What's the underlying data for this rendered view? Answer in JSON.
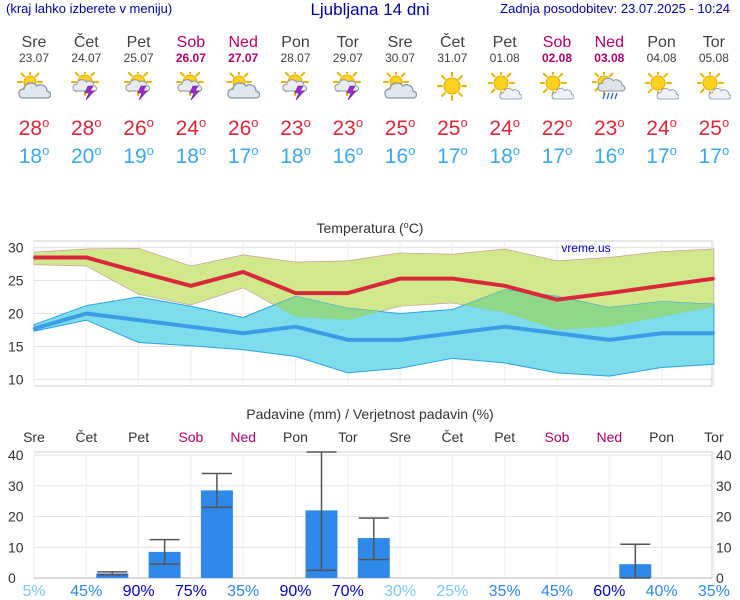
{
  "header": {
    "menu_hint": "(kraj lahko izberete v meniju)",
    "title": "Ljubljana 14 dni",
    "last_update": "Zadnja posodobitev: 23.07.2025 - 10:24"
  },
  "days": [
    {
      "day": "Sre",
      "date": "23.07",
      "weekend": false,
      "icon": "partly-cloudy-icon",
      "max": "28",
      "min": "18"
    },
    {
      "day": "Čet",
      "date": "24.07",
      "weekend": false,
      "icon": "sun-thunder-icon",
      "max": "28",
      "min": "20"
    },
    {
      "day": "Pet",
      "date": "25.07",
      "weekend": false,
      "icon": "sun-thunder-icon",
      "max": "26",
      "min": "19"
    },
    {
      "day": "Sob",
      "date": "26.07",
      "weekend": true,
      "icon": "sun-thunder-icon",
      "max": "24",
      "min": "18"
    },
    {
      "day": "Ned",
      "date": "27.07",
      "weekend": true,
      "icon": "partly-cloudy-icon",
      "max": "26",
      "min": "17"
    },
    {
      "day": "Pon",
      "date": "28.07",
      "weekend": false,
      "icon": "sun-thunder-icon",
      "max": "23",
      "min": "18"
    },
    {
      "day": "Tor",
      "date": "29.07",
      "weekend": false,
      "icon": "sun-thunder-icon",
      "max": "23",
      "min": "16"
    },
    {
      "day": "Sre",
      "date": "30.07",
      "weekend": false,
      "icon": "partly-cloudy-icon",
      "max": "25",
      "min": "16"
    },
    {
      "day": "Čet",
      "date": "31.07",
      "weekend": false,
      "icon": "sun-icon",
      "max": "25",
      "min": "17"
    },
    {
      "day": "Pet",
      "date": "01.08",
      "weekend": false,
      "icon": "sun-small-cloud-icon",
      "max": "24",
      "min": "18"
    },
    {
      "day": "Sob",
      "date": "02.08",
      "weekend": true,
      "icon": "sun-small-cloud-icon",
      "max": "22",
      "min": "17"
    },
    {
      "day": "Ned",
      "date": "03.08",
      "weekend": true,
      "icon": "sun-rain-icon",
      "max": "23",
      "min": "16"
    },
    {
      "day": "Pon",
      "date": "04.08",
      "weekend": false,
      "icon": "sun-small-cloud-icon",
      "max": "24",
      "min": "17"
    },
    {
      "day": "Tor",
      "date": "05.08",
      "weekend": false,
      "icon": "sun-small-cloud-icon",
      "max": "25",
      "min": "17"
    }
  ],
  "colors": {
    "max_line": "#d8283a",
    "min_line": "#3a9de6",
    "max_band": "#d2e88c",
    "min_band": "#7fdcec",
    "overlap_band": "#8fd88a",
    "bar": "#2f89e8",
    "weekend": "#b0006a",
    "prob_high": "#0000c0",
    "prob_mid": "#2f89e8",
    "prob_low": "#7cc8f4"
  },
  "chart_data": [
    {
      "type": "line",
      "title": "Temperatura (°C)",
      "watermark": "vreme.us",
      "categories": [
        "Sre",
        "Čet",
        "Pet",
        "Sob",
        "Ned",
        "Pon",
        "Tor",
        "Sre",
        "Čet",
        "Pet",
        "Sob",
        "Ned",
        "Pon",
        "Tor"
      ],
      "ylim": [
        9,
        31
      ],
      "yticks": [
        10,
        15,
        20,
        25,
        30
      ],
      "grid": true,
      "series": [
        {
          "name": "max",
          "values": [
            28.5,
            28.5,
            26.3,
            24.2,
            26.3,
            23.1,
            23.1,
            25.3,
            25.3,
            24.2,
            22.1,
            23.1,
            24.2,
            25.3
          ]
        },
        {
          "name": "min",
          "values": [
            17.7,
            20.0,
            19.0,
            18.0,
            17.0,
            18.0,
            16.0,
            16.0,
            17.0,
            18.0,
            17.0,
            16.0,
            17.0,
            17.0
          ]
        }
      ],
      "bands": [
        {
          "name": "max-range",
          "upper": [
            29.3,
            29.8,
            29.9,
            27.2,
            28.9,
            27.8,
            28.0,
            29.2,
            29.0,
            29.8,
            28.0,
            28.5,
            29.4,
            29.8
          ],
          "lower": [
            27.4,
            27.2,
            22.9,
            21.3,
            23.9,
            19.5,
            19.0,
            21.1,
            21.6,
            20.1,
            17.5,
            18.0,
            19.5,
            21.0
          ]
        },
        {
          "name": "min-range",
          "upper": [
            18.3,
            21.2,
            22.5,
            21.1,
            19.4,
            22.6,
            20.8,
            20.0,
            20.6,
            23.6,
            22.6,
            20.9,
            21.8,
            21.4
          ],
          "lower": [
            17.3,
            19.0,
            15.6,
            15.1,
            14.5,
            13.5,
            11.0,
            11.7,
            13.2,
            12.5,
            11.0,
            10.5,
            11.8,
            12.3
          ]
        }
      ]
    },
    {
      "type": "bar",
      "title": "Padavine (mm) / Verjetnost padavin (%)",
      "categories": [
        "Sre",
        "Čet",
        "Pet",
        "Sob",
        "Ned",
        "Pon",
        "Tor",
        "Sre",
        "Čet",
        "Pet",
        "Sob",
        "Ned",
        "Pon",
        "Tor"
      ],
      "ylim": [
        0,
        41
      ],
      "yticks": [
        0,
        10,
        20,
        30,
        40
      ],
      "grid": true,
      "values": [
        0,
        1.5,
        8.5,
        28.5,
        0,
        22,
        13,
        0,
        0,
        0,
        0,
        4.5,
        0,
        0
      ],
      "error_low": [
        null,
        1,
        4.5,
        23,
        null,
        2.5,
        6,
        null,
        null,
        null,
        null,
        0,
        null,
        null
      ],
      "error_high": [
        null,
        2,
        12.5,
        34,
        null,
        41,
        19.5,
        null,
        null,
        null,
        null,
        11,
        null,
        null
      ],
      "probability": [
        "5%",
        "45%",
        "90%",
        "75%",
        "35%",
        "90%",
        "70%",
        "30%",
        "25%",
        "35%",
        "45%",
        "60%",
        "40%",
        "35%"
      ],
      "probability_level": [
        "low",
        "mid",
        "high",
        "high",
        "mid",
        "high",
        "high",
        "low",
        "low",
        "mid",
        "mid",
        "high",
        "mid",
        "mid"
      ]
    }
  ]
}
